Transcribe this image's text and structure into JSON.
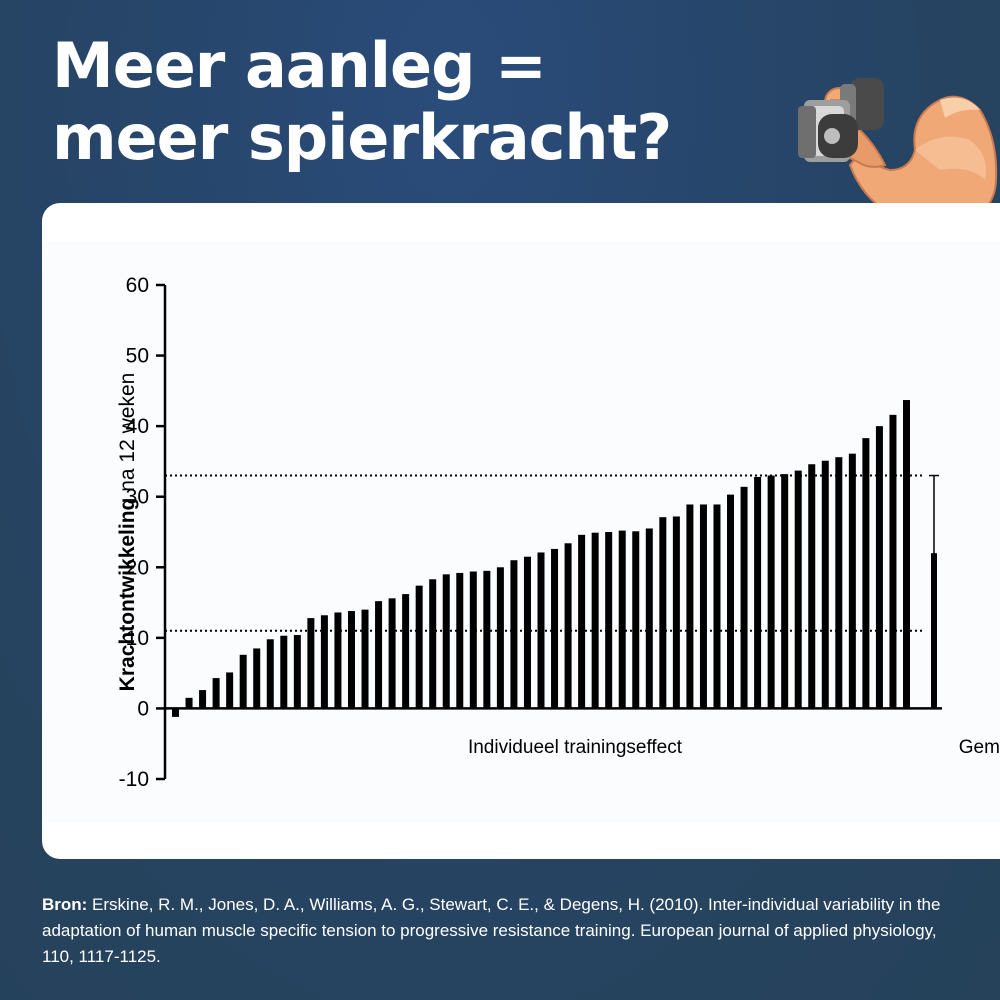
{
  "header": {
    "title_line1": "Meer aanleg =",
    "title_line2": "meer spierkracht?"
  },
  "mascot_icon": "flexed-arm-with-dumbbell-icon",
  "chart_data": {
    "type": "bar",
    "ylabel_bold": "Krachtontwikkeling",
    "ylabel_rest": " na 12 weken",
    "xlabel": "Individueel trainingseffect",
    "mean_label": "Gem.",
    "ylim": [
      -10,
      60
    ],
    "yticks": [
      -10,
      0,
      10,
      20,
      30,
      40,
      50,
      60
    ],
    "values": [
      -1.2,
      1.5,
      2.6,
      4.3,
      5.1,
      7.6,
      8.5,
      9.8,
      10.3,
      10.4,
      12.8,
      13.2,
      13.6,
      13.8,
      14.0,
      15.2,
      15.6,
      16.2,
      17.4,
      18.3,
      19.0,
      19.2,
      19.4,
      19.5,
      20.0,
      21.0,
      21.5,
      22.1,
      22.6,
      23.4,
      24.6,
      24.9,
      25.0,
      25.2,
      25.1,
      25.5,
      27.1,
      27.2,
      28.9,
      28.9,
      28.9,
      30.3,
      31.4,
      32.8,
      33.0,
      33.2,
      33.7,
      34.6,
      35.1,
      35.6,
      36.1,
      38.3,
      40.0,
      41.6,
      43.7
    ],
    "mean": 22.0,
    "mean_error": 11.0,
    "reference_lines": [
      11,
      33
    ],
    "bar_color": "#000000"
  },
  "source": {
    "label": "Bron:",
    "text": " Erskine, R. M., Jones, D. A., Williams, A. G., Stewart, C. E., & Degens, H. (2010). Inter-individual variability in the adaptation of human muscle specific tension to progressive resistance training. European journal of applied physiology, 110, 1117-1125."
  }
}
